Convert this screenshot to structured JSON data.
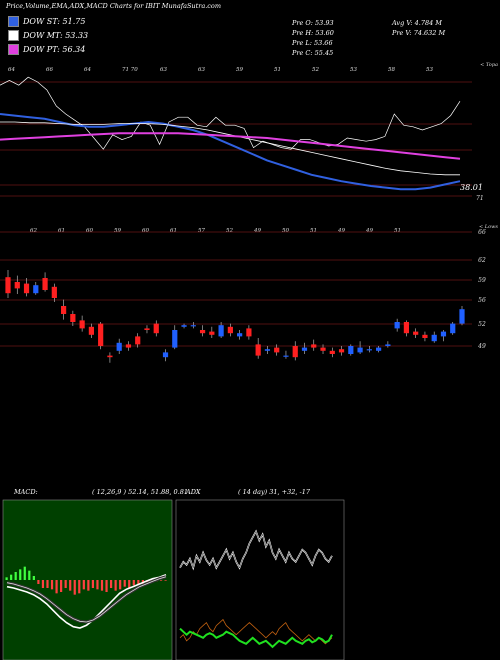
{
  "header": {
    "title": "Price,Volume,EMA,ADX,MACD Charts for IBIT MunafaSutra.com"
  },
  "legend": [
    {
      "label": "DOW ST: 51.75",
      "color": "#3060e0"
    },
    {
      "label": "DOW MT: 53.33",
      "color": "#ffffff"
    },
    {
      "label": "DOW PT: 56.34",
      "color": "#e040e0"
    }
  ],
  "stats": [
    [
      "Pre O: 53.93",
      "Avg V: 4.784 M"
    ],
    [
      "Pre H: 53.60",
      "Pre V: 74.632 M"
    ],
    [
      "Pre L: 53.66",
      ""
    ],
    [
      "Pre C: 55.45",
      ""
    ]
  ],
  "ema_panel": {
    "corner_label": "< Topa",
    "top_labels": [
      "64",
      "66",
      "64",
      "71 70",
      "63",
      "63",
      "59",
      "51",
      "52",
      "53",
      "58",
      "53"
    ],
    "bottom_labels": [
      "62",
      "61",
      "60",
      "59",
      "60",
      "61",
      "57",
      "52",
      "49",
      "50",
      "51",
      "49",
      "49",
      "51"
    ],
    "last_label": "38.01",
    "low_label": "71"
  },
  "candle_panel": {
    "corner_label": "< Lows",
    "axis_labels": [
      "66",
      "62",
      "59",
      "56",
      "52",
      "49"
    ]
  },
  "macd": {
    "label": "MACD:",
    "params": "( 12,26,9 ) 52.14, 51.88, 0.81"
  },
  "adx": {
    "label": "ADX",
    "params": "( 14 day) 31, +32, -17"
  },
  "colors": {
    "ema_fast": "#3060e0",
    "ema_mid": "#ffffff",
    "ema_slow": "#e040e0",
    "price_line": "#ffffff",
    "bull": "#2060ff",
    "bear": "#ff2020",
    "macd_bg": "#004000",
    "hist_bear": "#ff4040",
    "hist_bull": "#40ff40"
  },
  "chart_data": {
    "type": "line",
    "title": "Price,Volume,EMA,ADX,MACD Charts for IBIT MunafaSutra.com",
    "candles": [
      {
        "o": 59.6,
        "c": 57.6,
        "h": 60.5,
        "l": 57.0
      },
      {
        "o": 59.0,
        "c": 58.2,
        "h": 59.8,
        "l": 57.5
      },
      {
        "o": 58.8,
        "c": 57.6,
        "h": 59.5,
        "l": 57.2
      },
      {
        "o": 57.6,
        "c": 58.6,
        "h": 59.0,
        "l": 57.4
      },
      {
        "o": 59.5,
        "c": 58.0,
        "h": 60.2,
        "l": 57.8
      },
      {
        "o": 58.4,
        "c": 57.0,
        "h": 58.8,
        "l": 56.5
      },
      {
        "o": 56.0,
        "c": 55.0,
        "h": 56.8,
        "l": 54.3
      },
      {
        "o": 55.0,
        "c": 54.0,
        "h": 55.4,
        "l": 53.5
      },
      {
        "o": 54.2,
        "c": 53.2,
        "h": 54.8,
        "l": 52.8
      },
      {
        "o": 53.4,
        "c": 52.4,
        "h": 53.8,
        "l": 52.0
      },
      {
        "o": 53.8,
        "c": 51.0,
        "h": 54.0,
        "l": 50.6
      },
      {
        "o": 49.8,
        "c": 49.6,
        "h": 50.2,
        "l": 48.9
      },
      {
        "o": 50.4,
        "c": 51.4,
        "h": 51.9,
        "l": 50.0
      },
      {
        "o": 51.2,
        "c": 50.8,
        "h": 51.6,
        "l": 50.4
      },
      {
        "o": 52.2,
        "c": 51.2,
        "h": 52.6,
        "l": 50.8
      },
      {
        "o": 53.2,
        "c": 53.0,
        "h": 53.6,
        "l": 52.6
      },
      {
        "o": 53.8,
        "c": 52.6,
        "h": 54.2,
        "l": 52.2
      },
      {
        "o": 49.6,
        "c": 50.2,
        "h": 50.6,
        "l": 49.1
      },
      {
        "o": 50.8,
        "c": 53.0,
        "h": 53.6,
        "l": 50.6
      },
      {
        "o": 53.4,
        "c": 53.6,
        "h": 53.8,
        "l": 53.2
      },
      {
        "o": 53.6,
        "c": 53.6,
        "h": 54.0,
        "l": 53.2
      },
      {
        "o": 53.0,
        "c": 52.6,
        "h": 53.6,
        "l": 52.2
      },
      {
        "o": 52.8,
        "c": 52.4,
        "h": 53.4,
        "l": 52.0
      },
      {
        "o": 52.2,
        "c": 53.6,
        "h": 54.0,
        "l": 52.0
      },
      {
        "o": 53.4,
        "c": 52.6,
        "h": 53.8,
        "l": 52.2
      },
      {
        "o": 52.2,
        "c": 52.6,
        "h": 53.0,
        "l": 51.8
      },
      {
        "o": 53.2,
        "c": 52.2,
        "h": 53.6,
        "l": 51.8
      },
      {
        "o": 51.2,
        "c": 49.8,
        "h": 52.0,
        "l": 49.4
      },
      {
        "o": 50.4,
        "c": 50.6,
        "h": 51.0,
        "l": 50.0
      },
      {
        "o": 50.8,
        "c": 50.2,
        "h": 51.2,
        "l": 49.8
      },
      {
        "o": 49.8,
        "c": 49.8,
        "h": 50.4,
        "l": 49.4
      },
      {
        "o": 51.0,
        "c": 49.6,
        "h": 51.6,
        "l": 49.2
      },
      {
        "o": 50.4,
        "c": 50.8,
        "h": 51.4,
        "l": 50.0
      },
      {
        "o": 51.2,
        "c": 50.8,
        "h": 51.8,
        "l": 50.4
      },
      {
        "o": 50.8,
        "c": 50.4,
        "h": 51.2,
        "l": 50.0
      },
      {
        "o": 50.4,
        "c": 50.0,
        "h": 50.8,
        "l": 49.6
      },
      {
        "o": 50.6,
        "c": 50.2,
        "h": 51.0,
        "l": 49.8
      },
      {
        "o": 50.0,
        "c": 51.0,
        "h": 51.2,
        "l": 49.8
      },
      {
        "o": 50.2,
        "c": 50.8,
        "h": 51.6,
        "l": 50.0
      },
      {
        "o": 50.6,
        "c": 50.6,
        "h": 51.0,
        "l": 50.2
      },
      {
        "o": 50.4,
        "c": 50.8,
        "h": 51.0,
        "l": 50.2
      },
      {
        "o": 51.0,
        "c": 51.2,
        "h": 51.6,
        "l": 50.8
      },
      {
        "o": 53.2,
        "c": 54.0,
        "h": 54.4,
        "l": 52.8
      },
      {
        "o": 54.0,
        "c": 52.6,
        "h": 54.2,
        "l": 52.2
      },
      {
        "o": 52.8,
        "c": 52.4,
        "h": 53.2,
        "l": 52.0
      },
      {
        "o": 52.4,
        "c": 52.0,
        "h": 52.8,
        "l": 51.6
      },
      {
        "o": 51.6,
        "c": 52.4,
        "h": 52.8,
        "l": 51.4
      },
      {
        "o": 52.2,
        "c": 52.8,
        "h": 53.0,
        "l": 51.6
      },
      {
        "o": 52.6,
        "c": 53.8,
        "h": 54.0,
        "l": 52.4
      },
      {
        "o": 53.8,
        "c": 55.6,
        "h": 56.0,
        "l": 53.6
      }
    ],
    "candle_ylim": [
      48,
      66
    ],
    "ema_series": [
      {
        "name": "DOW ST",
        "values": [
          62,
          61.8,
          61.6,
          61.4,
          61,
          60.6,
          60.4,
          60.4,
          60.6,
          60.8,
          61,
          60.8,
          60.4,
          60,
          59.4,
          58.6,
          57.8,
          57,
          56.2,
          55.6,
          55,
          54.4,
          54,
          53.6,
          53.3,
          53,
          52.8,
          52.6,
          52.6,
          52.8,
          53.2,
          53.6
        ]
      },
      {
        "name": "DOW MT",
        "values": [
          61,
          61,
          60.9,
          60.9,
          60.8,
          60.7,
          60.7,
          60.7,
          60.8,
          60.8,
          60.8,
          60.7,
          60.5,
          60.3,
          60,
          59.6,
          59.2,
          58.8,
          58.4,
          58,
          57.6,
          57.2,
          56.8,
          56.4,
          56,
          55.6,
          55.2,
          54.9,
          54.7,
          54.5,
          54.4,
          54.4
        ]
      },
      {
        "name": "DOW PT",
        "values": [
          58.8,
          58.9,
          59,
          59.1,
          59.2,
          59.3,
          59.4,
          59.5,
          59.6,
          59.6,
          59.6,
          59.6,
          59.6,
          59.5,
          59.4,
          59.3,
          59.2,
          59.1,
          59,
          58.8,
          58.6,
          58.4,
          58.2,
          58,
          57.8,
          57.6,
          57.4,
          57.2,
          57,
          56.8,
          56.6,
          56.4
        ]
      }
    ],
    "ema_ylim": [
      50,
      68
    ],
    "macd_line": [
      -1,
      -1.2,
      -1.5,
      -1.8,
      -2.2,
      -2.8,
      -3.6,
      -4.6,
      -5.6,
      -6.4,
      -7,
      -7.2,
      -6.8,
      -6,
      -5,
      -4,
      -3,
      -2,
      -1.4,
      -1,
      -0.6,
      -0.2,
      0.2,
      0.4,
      0.8
    ],
    "macd_signal": [
      -0.4,
      -0.6,
      -0.9,
      -1.2,
      -1.6,
      -2.1,
      -2.8,
      -3.6,
      -4.4,
      -5.2,
      -5.8,
      -6.2,
      -6.3,
      -6,
      -5.4,
      -4.6,
      -3.8,
      -3,
      -2.2,
      -1.6,
      -1,
      -0.6,
      -0.2,
      0.2,
      0.5
    ],
    "macd_hist": [
      0.4,
      0.8,
      1.2,
      1.6,
      2,
      1.4,
      0.6,
      -0.6,
      -1.2,
      -1.2,
      -1.4,
      -2,
      -1.8,
      -1.2,
      -1.6,
      -2.2,
      -2,
      -1.4,
      -1.6,
      -1.2,
      -1.4,
      -1.6,
      -1.8,
      -1.2,
      -1.6,
      -1.4,
      -1,
      -1.2,
      -0.8,
      -0.6,
      -0.6,
      -0.4,
      -0.2,
      -0.2,
      -0.1,
      -0.1
    ],
    "macd_ylim": [
      -9,
      9
    ],
    "adx_plus": [
      40,
      44,
      42,
      46,
      40,
      48,
      44,
      50,
      45,
      42,
      46,
      40,
      44,
      48,
      52,
      46,
      50,
      44,
      40,
      46,
      50,
      56,
      60,
      64,
      58,
      62,
      54,
      58,
      50,
      46,
      52,
      48,
      44,
      50,
      46,
      44,
      48,
      52,
      50,
      46,
      42,
      48,
      52,
      50,
      46,
      44,
      48
    ],
    "adx_minus": [
      12,
      14,
      10,
      12,
      16,
      14,
      18,
      20,
      22,
      18,
      16,
      20,
      22,
      24,
      20,
      18,
      16,
      14,
      16,
      18,
      20,
      22,
      20,
      18,
      16,
      14,
      12,
      14,
      16,
      14,
      18,
      20,
      22,
      18,
      16,
      14,
      12,
      10,
      12,
      14,
      12,
      10,
      12,
      10,
      8,
      10,
      12
    ],
    "adx": [
      18,
      16,
      14,
      16,
      15,
      14,
      13,
      12,
      14,
      15,
      14,
      12,
      13,
      14,
      16,
      15,
      14,
      12,
      10,
      9,
      8,
      10,
      12,
      10,
      8,
      9,
      10,
      8,
      6,
      8,
      10,
      9,
      8,
      10,
      12,
      10,
      9,
      8,
      10,
      11,
      9,
      10,
      12,
      11,
      9,
      10,
      14
    ],
    "adx_ylim": [
      0,
      100
    ]
  }
}
